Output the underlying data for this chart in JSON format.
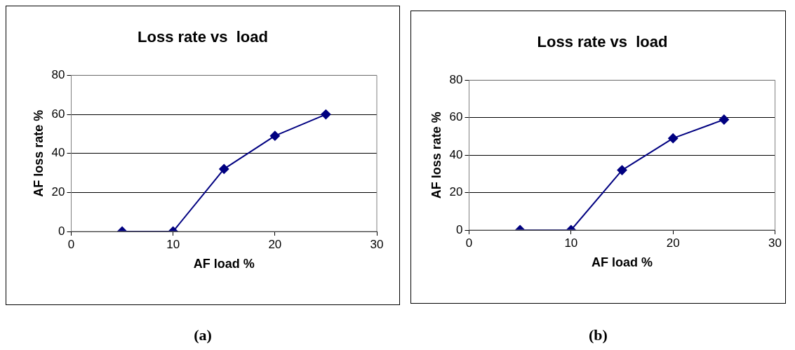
{
  "chart_data": [
    {
      "type": "line",
      "title": "Loss rate vs  load",
      "xlabel": "AF load %",
      "ylabel": "AF loss rate %",
      "x": [
        5,
        10,
        15,
        20,
        25
      ],
      "series": [
        {
          "color": "#000080",
          "values": [
            0,
            0,
            32,
            49,
            60
          ]
        }
      ],
      "xlim": [
        0,
        30
      ],
      "xticks": [
        0,
        10,
        20,
        30
      ],
      "ylim": [
        0,
        80
      ],
      "yticks": [
        0,
        20,
        40,
        60,
        80
      ],
      "grid": "y",
      "legend": false,
      "marker": "diamond",
      "line_style": "solid",
      "annotations": [
        "(a)"
      ]
    },
    {
      "type": "line",
      "title": "Loss rate vs  load",
      "xlabel": "AF load %",
      "ylabel": "AF loss rate %",
      "x": [
        5,
        10,
        15,
        20,
        25
      ],
      "series": [
        {
          "color": "#000080",
          "values": [
            0,
            0,
            32,
            49,
            59
          ]
        }
      ],
      "xlim": [
        0,
        30
      ],
      "xticks": [
        0,
        10,
        20,
        30
      ],
      "ylim": [
        0,
        80
      ],
      "yticks": [
        0,
        20,
        40,
        60,
        80
      ],
      "grid": "y",
      "legend": false,
      "marker": "diamond",
      "line_style": "solid",
      "annotations": [
        "(b)"
      ]
    }
  ]
}
